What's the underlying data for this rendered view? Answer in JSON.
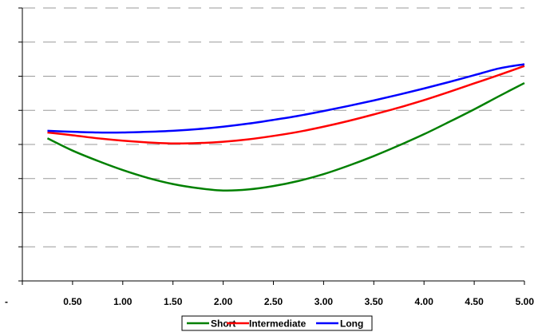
{
  "chart_data": {
    "type": "line",
    "title": "",
    "xlabel": "",
    "ylabel": "",
    "xlim": [
      0,
      5
    ],
    "ylim": [
      0,
      8
    ],
    "x_ticks": [
      0,
      0.5,
      1,
      1.5,
      2,
      2.5,
      3,
      3.5,
      4,
      4.5,
      5
    ],
    "x_tick_labels": [
      "-",
      "0.50",
      "1.00",
      "1.50",
      "2.00",
      "2.50",
      "3.00",
      "3.50",
      "4.00",
      "4.50",
      "5.00"
    ],
    "y_ticks": [
      0,
      1,
      2,
      3,
      4,
      5,
      6,
      7,
      8
    ],
    "y_tick_labels_visible": false,
    "grid": "horizontal-dashed",
    "legend_position": "bottom",
    "series": [
      {
        "name": "Short",
        "color": "#008000",
        "x": [
          0.25,
          0.5,
          0.75,
          1.0,
          1.25,
          1.5,
          1.75,
          2.0,
          2.25,
          2.5,
          2.75,
          3.0,
          3.25,
          3.5,
          3.75,
          4.0,
          4.25,
          4.5,
          4.75,
          5.0
        ],
        "y": [
          4.18,
          3.82,
          3.52,
          3.25,
          3.02,
          2.84,
          2.72,
          2.65,
          2.68,
          2.78,
          2.93,
          3.13,
          3.38,
          3.66,
          3.97,
          4.3,
          4.66,
          5.03,
          5.42,
          5.8
        ]
      },
      {
        "name": "Intermediate",
        "color": "#ff0000",
        "x": [
          0.25,
          0.5,
          0.75,
          1.0,
          1.25,
          1.5,
          1.75,
          2.0,
          2.25,
          2.5,
          2.75,
          3.0,
          3.25,
          3.5,
          3.75,
          4.0,
          4.25,
          4.5,
          4.75,
          5.0
        ],
        "y": [
          4.35,
          4.27,
          4.18,
          4.11,
          4.06,
          4.03,
          4.04,
          4.08,
          4.15,
          4.25,
          4.37,
          4.52,
          4.69,
          4.88,
          5.08,
          5.3,
          5.54,
          5.79,
          6.04,
          6.3
        ]
      },
      {
        "name": "Long",
        "color": "#0000ff",
        "x": [
          0.25,
          0.5,
          0.75,
          1.0,
          1.25,
          1.5,
          1.75,
          2.0,
          2.25,
          2.5,
          2.75,
          3.0,
          3.25,
          3.5,
          3.75,
          4.0,
          4.25,
          4.5,
          4.75,
          5.0
        ],
        "y": [
          4.4,
          4.37,
          4.35,
          4.35,
          4.37,
          4.4,
          4.45,
          4.52,
          4.61,
          4.72,
          4.84,
          4.98,
          5.13,
          5.29,
          5.46,
          5.64,
          5.83,
          6.03,
          6.23,
          6.35
        ]
      }
    ]
  }
}
